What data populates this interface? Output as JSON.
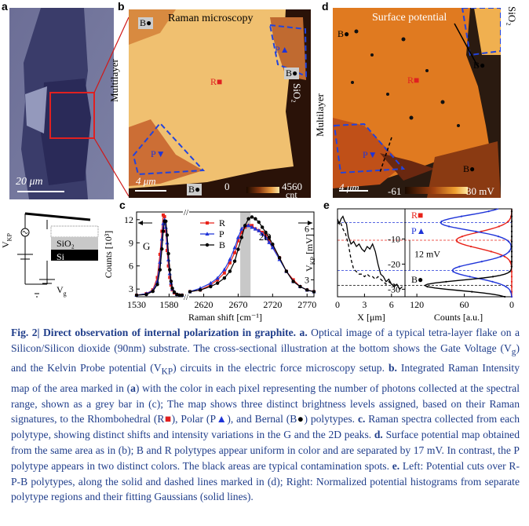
{
  "panels": {
    "a": {
      "label": "a",
      "scalebar": "20 μm"
    },
    "b": {
      "label": "b",
      "title": "Raman microscopy",
      "side_left": "Multilayer",
      "side_right": "SiO₂",
      "tags": [
        "B",
        "R",
        "P",
        "B",
        "P",
        "B"
      ],
      "scalebar": "4 μm",
      "cbar_min": "0",
      "cbar_max": "4560",
      "cbar_unit": "cnt"
    },
    "d": {
      "label": "d",
      "title": "Surface potential",
      "side_left": "Multilayer",
      "side_right": "SiO₂",
      "tags": [
        "B",
        "R",
        "P",
        "B",
        "B"
      ],
      "scalebar": "4 μm",
      "cbar_min": "-61",
      "cbar_max": "30 mV"
    },
    "schematic": {
      "vkp": "V",
      "vkp_sub": "KP",
      "sio2": "SiO₂",
      "si": "Si",
      "vg": "V",
      "vg_sub": "g"
    },
    "c": {
      "label": "c"
    },
    "e": {
      "label": "e"
    }
  },
  "chart_data": [
    {
      "type": "line",
      "panel": "c",
      "title": "",
      "xlabel": "Raman shift [cm⁻¹]",
      "ylabel": "Counts [10³]",
      "segments": [
        {
          "name": "G",
          "xlim": [
            1530,
            1600
          ],
          "xticks": [
            1530,
            1580
          ],
          "ylim": [
            2,
            13
          ],
          "yticks": [
            3,
            6,
            9,
            12
          ]
        },
        {
          "name": "2D",
          "xlim": [
            2600,
            2780
          ],
          "xticks": [
            2620,
            2670,
            2720,
            2770
          ],
          "ylim": [
            2,
            7
          ],
          "yticks": [
            3,
            6
          ]
        }
      ],
      "shaded_band": [
        2673,
        2688
      ],
      "annotations": [
        "G",
        "2D"
      ],
      "legend": [
        "R",
        "P",
        "B"
      ],
      "series": [
        {
          "name": "R",
          "color": "#e8231a",
          "marker": "square",
          "g_x": [
            1530,
            1545,
            1555,
            1562,
            1566,
            1569,
            1571,
            1573,
            1575,
            1577,
            1579,
            1581,
            1583,
            1585,
            1588,
            1592,
            1596,
            1600
          ],
          "g_y": [
            2.2,
            2.4,
            2.9,
            4.5,
            7.5,
            10.5,
            12.6,
            12.4,
            10.5,
            8.0,
            6.0,
            4.5,
            3.5,
            2.9,
            2.5,
            2.3,
            2.2,
            2.2
          ],
          "d_x": [
            2600,
            2615,
            2630,
            2640,
            2650,
            2658,
            2665,
            2670,
            2675,
            2680,
            2685,
            2690,
            2695,
            2700,
            2705,
            2710,
            2715,
            2720,
            2730,
            2740,
            2750,
            2760,
            2770,
            2780
          ],
          "d_y": [
            2.3,
            2.4,
            2.7,
            3.0,
            3.4,
            4.0,
            4.6,
            5.3,
            5.8,
            6.1,
            6.2,
            6.2,
            6.0,
            5.9,
            5.8,
            5.6,
            5.3,
            5.0,
            4.3,
            3.5,
            3.0,
            2.6,
            2.4,
            2.3
          ]
        },
        {
          "name": "P",
          "color": "#1f34d8",
          "marker": "triangle",
          "g_x": [
            1530,
            1545,
            1555,
            1562,
            1566,
            1569,
            1571,
            1573,
            1575,
            1577,
            1579,
            1581,
            1583,
            1585,
            1588,
            1592,
            1596,
            1600
          ],
          "g_y": [
            2.2,
            2.4,
            2.8,
            4.0,
            6.5,
            9.5,
            11.5,
            12.0,
            11.0,
            9.0,
            6.8,
            5.0,
            3.8,
            3.0,
            2.6,
            2.3,
            2.2,
            2.2
          ],
          "d_x": [
            2600,
            2615,
            2630,
            2640,
            2650,
            2658,
            2665,
            2670,
            2675,
            2680,
            2685,
            2690,
            2695,
            2700,
            2705,
            2710,
            2715,
            2720,
            2730,
            2740,
            2750,
            2760,
            2770,
            2780
          ],
          "d_y": [
            2.3,
            2.5,
            2.8,
            3.1,
            3.6,
            4.2,
            4.9,
            5.5,
            6.0,
            6.2,
            6.2,
            6.1,
            6.0,
            5.9,
            5.7,
            5.5,
            5.2,
            4.9,
            4.2,
            3.5,
            2.9,
            2.6,
            2.4,
            2.3
          ]
        },
        {
          "name": "B",
          "color": "#000000",
          "marker": "circle",
          "g_x": [
            1530,
            1545,
            1555,
            1562,
            1566,
            1569,
            1571,
            1573,
            1575,
            1577,
            1579,
            1581,
            1583,
            1585,
            1588,
            1592,
            1596,
            1600
          ],
          "g_y": [
            2.2,
            2.3,
            2.7,
            3.6,
            5.5,
            8.2,
            10.5,
            11.8,
            11.8,
            10.0,
            7.6,
            5.5,
            4.0,
            3.1,
            2.6,
            2.3,
            2.2,
            2.2
          ],
          "d_x": [
            2600,
            2615,
            2630,
            2640,
            2650,
            2658,
            2665,
            2670,
            2675,
            2680,
            2685,
            2690,
            2695,
            2700,
            2705,
            2710,
            2715,
            2720,
            2730,
            2740,
            2750,
            2760,
            2770,
            2780
          ],
          "d_y": [
            2.3,
            2.4,
            2.6,
            2.8,
            3.1,
            3.5,
            4.1,
            4.8,
            5.5,
            6.2,
            6.6,
            6.7,
            6.6,
            6.4,
            6.1,
            5.8,
            5.5,
            5.1,
            4.3,
            3.5,
            2.9,
            2.6,
            2.4,
            2.3
          ]
        }
      ]
    },
    {
      "type": "line",
      "panel": "e-left",
      "xlabel": "X [μm]",
      "ylabel": "Vₖₚ [mV]",
      "ylabel_main": "V",
      "ylabel_sub": "KP",
      "xlim": [
        0,
        7.5
      ],
      "xticks": [
        0,
        3,
        6
      ],
      "ylim": [
        -33,
        2
      ],
      "yticks": [
        -10,
        -20,
        -30
      ],
      "series": [
        {
          "name": "solid cut",
          "style": "solid",
          "x": [
            0.0,
            0.2,
            0.4,
            0.6,
            0.8,
            1.0,
            1.2,
            1.5,
            1.8,
            2.1,
            2.4,
            2.7,
            3.0,
            3.3,
            3.6,
            3.9,
            4.2,
            4.5,
            4.8,
            5.1,
            5.4,
            5.7,
            6.0,
            6.3,
            6.6,
            6.9,
            7.2
          ],
          "y": [
            -2,
            -4,
            -2,
            -1,
            -3,
            -4,
            -9,
            -12,
            -11,
            -13,
            -12,
            -14,
            -15,
            -13,
            -14,
            -12,
            -15,
            -20,
            -24,
            -25,
            -27,
            -26,
            -28,
            -29,
            -28,
            -30,
            -29
          ]
        },
        {
          "name": "dashed cut",
          "style": "dashed",
          "x": [
            0.0,
            0.3,
            0.6,
            0.9,
            1.2,
            1.5,
            1.8,
            2.1,
            2.4,
            2.7,
            3.0,
            3.3,
            3.6,
            3.9,
            4.2,
            4.5,
            4.8,
            5.1,
            5.4,
            5.7,
            6.0,
            6.3,
            6.6
          ],
          "y": [
            -4,
            -3,
            -6,
            -8,
            -12,
            -18,
            -22,
            -23,
            -24,
            -24,
            -25,
            -24,
            -25,
            -25,
            -26,
            -25,
            -26,
            -27,
            -28,
            -27,
            -28,
            -28,
            -29
          ]
        }
      ]
    },
    {
      "type": "line",
      "panel": "e-right",
      "xlabel": "Counts [a.u.]",
      "xlim": [
        0,
        135
      ],
      "xticks": [
        120,
        60,
        0
      ],
      "x_reversed": true,
      "ylim": [
        -33,
        2
      ],
      "legend": [
        "R",
        "P",
        "B"
      ],
      "annotation": "12 mV",
      "reference_lines": [
        -3.5,
        -10.5,
        -22.5,
        -28.5
      ],
      "series": [
        {
          "name": "R",
          "color": "#e8231a",
          "peak_mv": -10.5,
          "peak_count": 70,
          "sigma": 3.2
        },
        {
          "name": "P",
          "color": "#1f34d8",
          "peak_mv_1": -3.5,
          "peak_count_1": 90,
          "peak_mv_2": -22.5,
          "peak_count_2": 75,
          "sigma": 3.0
        },
        {
          "name": "B",
          "color": "#000000",
          "peak_mv": -28.5,
          "peak_count": 110,
          "sigma": 2.0
        }
      ]
    }
  ],
  "caption": {
    "title": "Fig. 2| Direct observation of internal polarization in graphite.",
    "a_head": "a.",
    "a_body": " Optical image of a typical tetra-layer flake on a Silicon/Silicon dioxide (90nm) substrate. The cross-sectional illustration at the bottom shows the Gate Voltage (V",
    "a_sub_g": "g",
    "a_mid": ") and the Kelvin Probe potential (V",
    "a_sub_kp": "KP",
    "a_end": ") circuits in the electric force microscopy setup.",
    "b_head": "b.",
    "b_body1": " Integrated Raman Intensity map of the area marked in (",
    "b_ref_a": "a",
    "b_body2": ") with the color in each pixel representing the number of photons collected at the spectral range, shown as a grey bar in (c); The map shows three distinct brightness levels assigned, based on their Raman signatures, to the Rhombohedral (R",
    "b_body3": "), Polar (P",
    "b_body4": "), and Bernal (B",
    "b_body5": ") polytypes.",
    "c_head": "c.",
    "c_body": " Raman spectra collected from each polytype, showing distinct shifts and intensity variations in the G and the 2D peaks.",
    "d_head": "d.",
    "d_body": " Surface potential map obtained from the same area as in (b); B and R polytypes appear uniform in color and are separated by 17 mV. In contrast, the P polytype appears in two distinct colors. The black areas are typical contamination spots.",
    "e_head": "e.",
    "e_body": " Left: Potential cuts over R-P-B polytypes, along the solid and dashed lines marked in (d); Right: Normalized potential histograms from separate polytype regions and their fitting Gaussians (solid lines)."
  }
}
